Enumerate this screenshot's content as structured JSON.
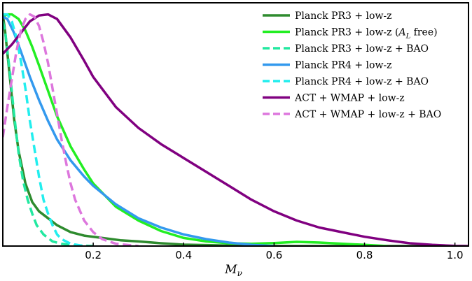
{
  "chart_data": {
    "type": "line",
    "title": "",
    "xlabel": "M_ν",
    "xlabel_main": "M",
    "xlabel_sub": "ν",
    "ylabel": "",
    "xlim": [
      0.0,
      1.03
    ],
    "ylim": [
      0.0,
      1.05
    ],
    "xticks": [
      0.2,
      0.4,
      0.6,
      0.8,
      1.0
    ],
    "xtick_labels": [
      "0.2",
      "0.4",
      "0.6",
      "0.8",
      "1.0"
    ],
    "yticks_visible": false,
    "legend_position": "top-right",
    "series": [
      {
        "name": "Planck PR3 + low-z",
        "label_parts": [
          {
            "t": "Planck PR3 + low-z"
          }
        ],
        "color": "#2e8b2e",
        "dash": "solid",
        "x": [
          0.0,
          0.005,
          0.015,
          0.025,
          0.035,
          0.05,
          0.065,
          0.08,
          0.1,
          0.12,
          0.15,
          0.18,
          0.22,
          0.26,
          0.3,
          0.35,
          0.4,
          0.5,
          0.6,
          0.7,
          0.8,
          0.9,
          1.0
        ],
        "y": [
          1.0,
          0.93,
          0.74,
          0.55,
          0.41,
          0.27,
          0.19,
          0.15,
          0.12,
          0.09,
          0.06,
          0.045,
          0.035,
          0.025,
          0.02,
          0.012,
          0.006,
          0.002,
          0.0,
          0.0,
          0.0,
          0.0,
          0.0
        ]
      },
      {
        "name": "Planck PR3 + low-z (A_L free)",
        "label_parts": [
          {
            "t": "Planck PR3 + low-z ("
          },
          {
            "t": "A",
            "italic": true
          },
          {
            "t": "L",
            "sub": true,
            "italic": true
          },
          {
            "t": " free)"
          }
        ],
        "color": "#22ee22",
        "dash": "solid",
        "x": [
          0.0,
          0.01,
          0.02,
          0.035,
          0.05,
          0.065,
          0.08,
          0.1,
          0.12,
          0.15,
          0.18,
          0.2,
          0.25,
          0.3,
          0.35,
          0.4,
          0.45,
          0.5,
          0.55,
          0.6,
          0.65,
          0.7,
          0.8,
          0.85
        ],
        "y": [
          0.99,
          1.0,
          1.0,
          0.98,
          0.93,
          0.86,
          0.78,
          0.67,
          0.56,
          0.43,
          0.33,
          0.27,
          0.17,
          0.11,
          0.065,
          0.035,
          0.02,
          0.012,
          0.01,
          0.013,
          0.018,
          0.015,
          0.005,
          0.0
        ]
      },
      {
        "name": "Planck PR3 + low-z + BAO",
        "label_parts": [
          {
            "t": "Planck PR3 + low-z + BAO"
          }
        ],
        "color": "#22e8a0",
        "dash": "dashed",
        "x": [
          0.0,
          0.005,
          0.015,
          0.025,
          0.035,
          0.045,
          0.055,
          0.065,
          0.075,
          0.09,
          0.11,
          0.13,
          0.16,
          0.2
        ],
        "y": [
          0.97,
          0.93,
          0.76,
          0.57,
          0.4,
          0.28,
          0.2,
          0.14,
          0.09,
          0.05,
          0.02,
          0.01,
          0.003,
          0.0
        ]
      },
      {
        "name": "Planck PR4 + low-z",
        "label_parts": [
          {
            "t": "Planck PR4 + low-z"
          }
        ],
        "color": "#3399ee",
        "dash": "solid",
        "x": [
          0.0,
          0.01,
          0.025,
          0.04,
          0.06,
          0.08,
          0.1,
          0.12,
          0.15,
          0.18,
          0.2,
          0.25,
          0.3,
          0.35,
          0.4,
          0.45,
          0.5,
          0.55,
          0.6
        ],
        "y": [
          0.99,
          0.98,
          0.92,
          0.84,
          0.73,
          0.63,
          0.54,
          0.46,
          0.37,
          0.3,
          0.26,
          0.18,
          0.12,
          0.08,
          0.05,
          0.03,
          0.015,
          0.005,
          0.0
        ]
      },
      {
        "name": "Planck PR4 + low-z + BAO",
        "label_parts": [
          {
            "t": "Planck PR4 + low-z + BAO"
          }
        ],
        "color": "#22eeee",
        "dash": "dashed",
        "x": [
          0.0,
          0.01,
          0.02,
          0.03,
          0.04,
          0.05,
          0.06,
          0.07,
          0.08,
          0.09,
          0.1,
          0.11,
          0.12,
          0.13,
          0.15,
          0.18
        ],
        "y": [
          1.0,
          1.0,
          0.97,
          0.9,
          0.8,
          0.68,
          0.54,
          0.42,
          0.3,
          0.2,
          0.14,
          0.09,
          0.05,
          0.03,
          0.01,
          0.0
        ]
      },
      {
        "name": "ACT + WMAP  + low-z",
        "label_parts": [
          {
            "t": "ACT + WMAP  + low-z"
          }
        ],
        "color": "#800080",
        "dash": "solid",
        "x": [
          0.0,
          0.02,
          0.04,
          0.06,
          0.08,
          0.1,
          0.12,
          0.15,
          0.18,
          0.2,
          0.25,
          0.3,
          0.35,
          0.4,
          0.45,
          0.5,
          0.55,
          0.6,
          0.65,
          0.7,
          0.75,
          0.8,
          0.85,
          0.9,
          0.95,
          1.0,
          1.03
        ],
        "y": [
          0.83,
          0.87,
          0.92,
          0.97,
          0.995,
          1.0,
          0.98,
          0.9,
          0.8,
          0.73,
          0.6,
          0.51,
          0.44,
          0.38,
          0.32,
          0.26,
          0.2,
          0.15,
          0.11,
          0.08,
          0.06,
          0.04,
          0.025,
          0.012,
          0.005,
          0.001,
          0.0
        ]
      },
      {
        "name": "ACT + WMAP + low-z + BAO",
        "label_parts": [
          {
            "t": "ACT + WMAP + low-z + BAO"
          }
        ],
        "color": "#dd77dd",
        "dash": "dashed",
        "x": [
          0.0,
          0.01,
          0.02,
          0.03,
          0.04,
          0.05,
          0.06,
          0.07,
          0.08,
          0.09,
          0.1,
          0.11,
          0.12,
          0.13,
          0.14,
          0.15,
          0.16,
          0.18,
          0.2,
          0.22,
          0.25,
          0.3
        ],
        "y": [
          0.47,
          0.6,
          0.72,
          0.84,
          0.93,
          0.98,
          1.0,
          0.99,
          0.95,
          0.88,
          0.79,
          0.68,
          0.57,
          0.46,
          0.36,
          0.27,
          0.2,
          0.11,
          0.06,
          0.03,
          0.01,
          0.0
        ]
      }
    ]
  }
}
